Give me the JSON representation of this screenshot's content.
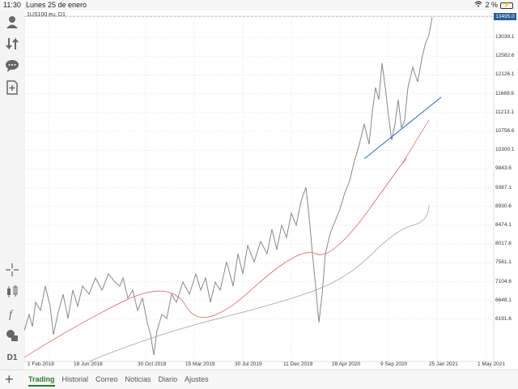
{
  "status_bar": {
    "time": "11:30",
    "date": "Lunes 25 de enero",
    "battery": "2 %"
  },
  "toolbar": {
    "icons": [
      "user-icon",
      "arrows-icon",
      "chat-icon",
      "add-document-icon",
      "crosshair-icon",
      "candles-icon",
      "function-icon",
      "objects-icon"
    ],
    "timeframe": "D1"
  },
  "chart": {
    "symbol_label": "1US100.eu, D1",
    "current_price": "13495.0",
    "y_ticks": [
      "13039.1",
      "12582.6",
      "12126.1",
      "11669.6",
      "11213.1",
      "10756.6",
      "10300.1",
      "9843.6",
      "9387.1",
      "8930.6",
      "8474.1",
      "8017.6",
      "7561.1",
      "7104.6",
      "6648.1",
      "6191.6"
    ],
    "x_ticks": [
      "1 Feb 2018",
      "18 Jun 2018",
      "30 Oct 2018",
      "15 Mar 2019",
      "30 Jul 2019",
      "11 Dec 2019",
      "28 Apr 2020",
      "9 Sep 2020",
      "25 Jan 2021",
      "1 May 2021"
    ],
    "colors": {
      "price": "#888888",
      "ma_fast": "#d9534f",
      "ma_slow": "#9a9a9a",
      "trendline": "#2b6cc4",
      "grid": "#e4e4e4"
    }
  },
  "bottom_tabs": [
    "Trading",
    "Historial",
    "Correo",
    "Noticias",
    "Diario",
    "Ajustes"
  ],
  "active_tab": "Trading"
}
